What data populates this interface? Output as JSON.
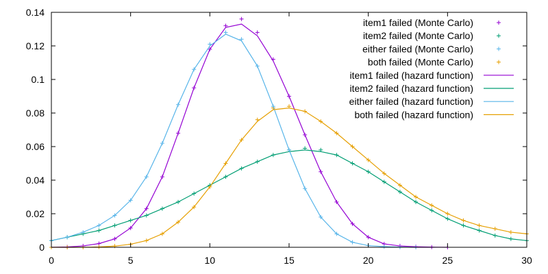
{
  "chart_data": {
    "type": "line",
    "title": "",
    "xlabel": "",
    "ylabel": "",
    "xlim": [
      0,
      30
    ],
    "ylim": [
      0,
      0.14
    ],
    "grid": false,
    "legend_position": "top-right",
    "x_ticks": [
      "0",
      "5",
      "10",
      "15",
      "20",
      "25",
      "30"
    ],
    "y_ticks": [
      "0",
      "0.02",
      "0.04",
      "0.06",
      "0.08",
      "0.1",
      "0.12",
      "0.14"
    ],
    "monte_carlo_series": [
      {
        "name": "item1 failed (Monte Carlo)",
        "color": "#9400d3",
        "marker": "plus",
        "x": [
          0,
          1,
          2,
          3,
          4,
          5,
          6,
          7,
          8,
          9,
          10,
          11,
          12,
          13,
          14,
          15,
          16,
          17,
          18,
          19,
          20,
          21,
          22,
          23,
          24,
          25
        ],
        "y": [
          0.0,
          0.0002,
          0.0008,
          0.0022,
          0.005,
          0.0115,
          0.023,
          0.042,
          0.068,
          0.095,
          0.118,
          0.132,
          0.136,
          0.128,
          0.112,
          0.09,
          0.067,
          0.045,
          0.027,
          0.014,
          0.006,
          0.002,
          0.0008,
          0.0003,
          0.0001,
          0.0
        ]
      },
      {
        "name": "item2 failed (Monte Carlo)",
        "color": "#009e73",
        "marker": "plus",
        "x": [
          0,
          1,
          2,
          3,
          4,
          5,
          6,
          7,
          8,
          9,
          10,
          11,
          12,
          13,
          14,
          15,
          16,
          17,
          18,
          19,
          20,
          21,
          22,
          23,
          24,
          25,
          26,
          27,
          28,
          29,
          30
        ],
        "y": [
          0.004,
          0.006,
          0.008,
          0.01,
          0.013,
          0.016,
          0.019,
          0.023,
          0.027,
          0.032,
          0.037,
          0.042,
          0.047,
          0.051,
          0.055,
          0.058,
          0.059,
          0.058,
          0.055,
          0.05,
          0.045,
          0.039,
          0.033,
          0.027,
          0.022,
          0.017,
          0.013,
          0.01,
          0.007,
          0.005,
          0.004
        ]
      },
      {
        "name": "either failed (Monte Carlo)",
        "color": "#56b4e9",
        "marker": "plus",
        "x": [
          0,
          1,
          2,
          3,
          4,
          5,
          6,
          7,
          8,
          9,
          10,
          11,
          12,
          13,
          14,
          15,
          16,
          17,
          18,
          19,
          20,
          21,
          22,
          23
        ],
        "y": [
          0.004,
          0.006,
          0.009,
          0.013,
          0.019,
          0.028,
          0.042,
          0.062,
          0.085,
          0.106,
          0.121,
          0.128,
          0.124,
          0.108,
          0.084,
          0.058,
          0.035,
          0.018,
          0.008,
          0.003,
          0.001,
          0.0004,
          0.0001,
          0.0
        ]
      },
      {
        "name": "both failed (Monte Carlo)",
        "color": "#e69f00",
        "marker": "plus",
        "x": [
          0,
          1,
          2,
          3,
          4,
          5,
          6,
          7,
          8,
          9,
          10,
          11,
          12,
          13,
          14,
          15,
          16,
          17,
          18,
          19,
          20,
          21,
          22,
          23,
          24,
          25,
          26,
          27,
          28,
          29,
          30
        ],
        "y": [
          0.0,
          0.0,
          0.0,
          0.0002,
          0.0007,
          0.0018,
          0.004,
          0.008,
          0.015,
          0.024,
          0.036,
          0.05,
          0.064,
          0.076,
          0.083,
          0.084,
          0.081,
          0.075,
          0.068,
          0.06,
          0.052,
          0.044,
          0.037,
          0.03,
          0.025,
          0.02,
          0.016,
          0.013,
          0.011,
          0.009,
          0.008
        ]
      }
    ],
    "hazard_series": [
      {
        "name": "item1 failed (hazard function)",
        "color": "#9400d3",
        "x": [
          0,
          1,
          2,
          3,
          4,
          5,
          6,
          7,
          8,
          9,
          10,
          11,
          12,
          13,
          14,
          15,
          16,
          17,
          18,
          19,
          20,
          21,
          22,
          23,
          24,
          25
        ],
        "y": [
          0.0,
          0.0002,
          0.0008,
          0.0022,
          0.005,
          0.0115,
          0.023,
          0.042,
          0.068,
          0.095,
          0.118,
          0.131,
          0.133,
          0.126,
          0.111,
          0.09,
          0.067,
          0.045,
          0.027,
          0.014,
          0.006,
          0.002,
          0.0008,
          0.0003,
          0.0001,
          0.0
        ]
      },
      {
        "name": "item2 failed (hazard function)",
        "color": "#009e73",
        "x": [
          0,
          1,
          2,
          3,
          4,
          5,
          6,
          7,
          8,
          9,
          10,
          11,
          12,
          13,
          14,
          15,
          16,
          17,
          18,
          19,
          20,
          21,
          22,
          23,
          24,
          25,
          26,
          27,
          28,
          29,
          30
        ],
        "y": [
          0.004,
          0.006,
          0.008,
          0.01,
          0.013,
          0.016,
          0.019,
          0.023,
          0.027,
          0.032,
          0.037,
          0.042,
          0.047,
          0.051,
          0.055,
          0.057,
          0.058,
          0.057,
          0.055,
          0.05,
          0.045,
          0.039,
          0.033,
          0.027,
          0.022,
          0.017,
          0.013,
          0.01,
          0.007,
          0.005,
          0.004
        ]
      },
      {
        "name": "either failed (hazard function)",
        "color": "#56b4e9",
        "x": [
          0,
          1,
          2,
          3,
          4,
          5,
          6,
          7,
          8,
          9,
          10,
          11,
          12,
          13,
          14,
          15,
          16,
          17,
          18,
          19,
          20,
          21,
          22,
          23
        ],
        "y": [
          0.004,
          0.006,
          0.009,
          0.013,
          0.019,
          0.028,
          0.042,
          0.062,
          0.085,
          0.106,
          0.12,
          0.127,
          0.123,
          0.108,
          0.084,
          0.058,
          0.035,
          0.018,
          0.008,
          0.003,
          0.001,
          0.0004,
          0.0001,
          0.0
        ]
      },
      {
        "name": "both failed (hazard function)",
        "color": "#e69f00",
        "x": [
          0,
          1,
          2,
          3,
          4,
          5,
          6,
          7,
          8,
          9,
          10,
          11,
          12,
          13,
          14,
          15,
          16,
          17,
          18,
          19,
          20,
          21,
          22,
          23,
          24,
          25,
          26,
          27,
          28,
          29,
          30
        ],
        "y": [
          0.0,
          0.0,
          0.0,
          0.0002,
          0.0007,
          0.0018,
          0.004,
          0.008,
          0.015,
          0.024,
          0.036,
          0.05,
          0.064,
          0.075,
          0.082,
          0.083,
          0.081,
          0.075,
          0.068,
          0.06,
          0.052,
          0.044,
          0.037,
          0.03,
          0.025,
          0.02,
          0.016,
          0.013,
          0.011,
          0.009,
          0.008
        ]
      }
    ]
  }
}
